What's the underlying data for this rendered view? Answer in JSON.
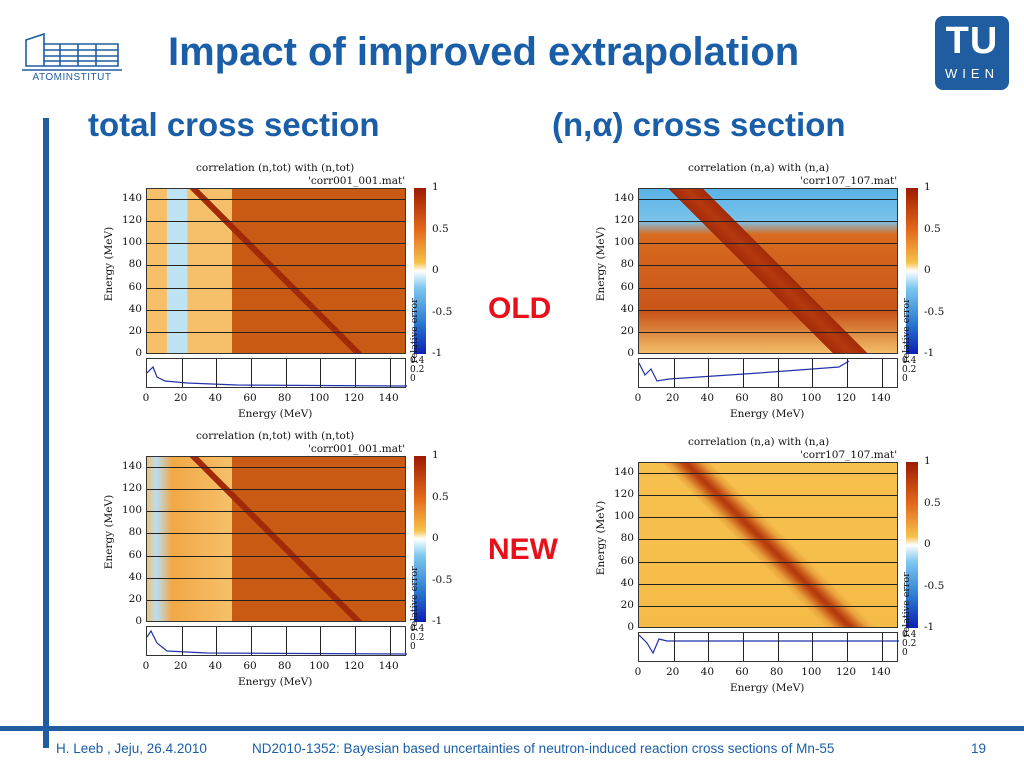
{
  "slide": {
    "title": "Impact of improved extrapolation",
    "subtitle_left": "total cross section",
    "subtitle_right": "(n,α) cross section",
    "label_old": "OLD",
    "label_new": "NEW",
    "logo_left_text": "ATOMINSTITUT",
    "logo_right_text": "WIEN"
  },
  "footer": {
    "left": "H. Leeb , Jeju, 26.4.2010",
    "middle": "ND2010-1352: Bayesian based uncertainties of neutron-induced reaction cross sections of Mn-55",
    "page": "19"
  },
  "plots": [
    {
      "title": "correlation (n,tot) with (n,tot)",
      "file": "'corr001_001.mat'"
    },
    {
      "title": "correlation (n,a) with (n,a)",
      "file": "'corr107_107.mat'"
    },
    {
      "title": "correlation (n,tot) with (n,tot)",
      "file": "'corr001_001.mat'"
    },
    {
      "title": "correlation (n,a) with (n,a)",
      "file": "'corr107_107.mat'"
    }
  ],
  "axes": {
    "x_label": "Energy (MeV)",
    "y_label": "Energy (MeV)",
    "ticks": [
      "0",
      "20",
      "40",
      "60",
      "80",
      "100",
      "120",
      "140"
    ],
    "colorbar_ticks": [
      "1",
      "0.5",
      "0",
      "-0.5",
      "-1"
    ],
    "error_ticks": [
      "0.4",
      "0.2",
      "0"
    ],
    "error_label": "relative error"
  },
  "colors": {
    "accent": "#1a5ea8",
    "tag": "#e8101a",
    "bar": "#1f5da0"
  }
}
